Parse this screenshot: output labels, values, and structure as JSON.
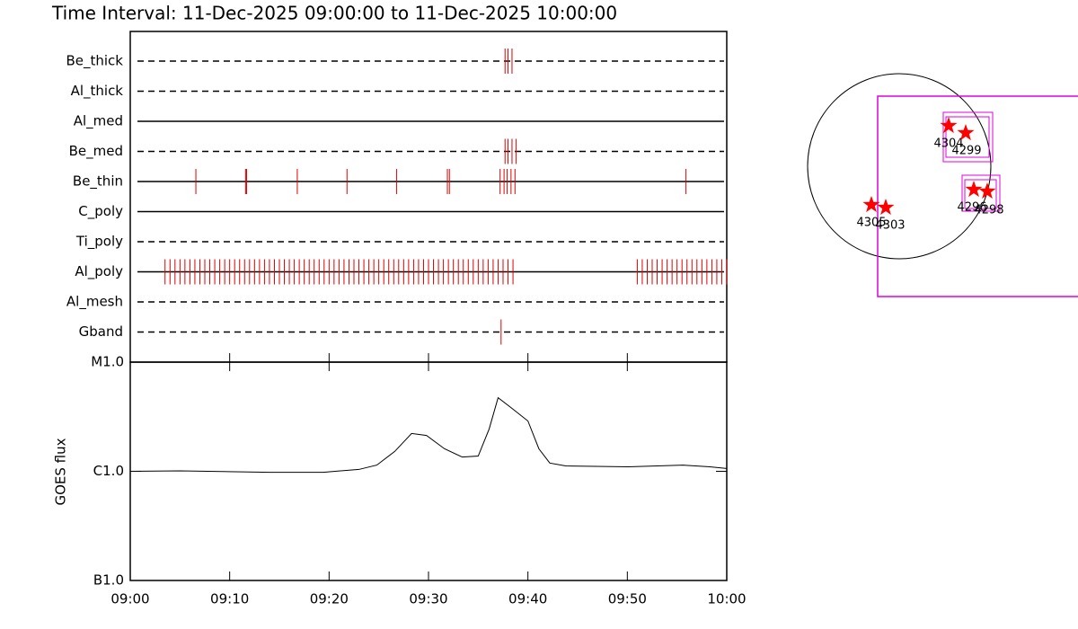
{
  "title": "Time Interval: 11-Dec-2025 09:00:00 to 11-Dec-2025 10:00:00",
  "chart_data": [
    {
      "type": "timeline",
      "color": "#e00000",
      "xlim": [
        0,
        60
      ],
      "rows": [
        {
          "label": "Be_thick",
          "style": "dashed",
          "events": [
            37.7,
            38.0,
            38.4
          ]
        },
        {
          "label": "Al_thick",
          "style": "dashed",
          "events": []
        },
        {
          "label": "Al_med",
          "style": "solid",
          "events": []
        },
        {
          "label": "Be_med",
          "style": "dashed",
          "events": [
            37.7,
            38.0,
            38.4,
            38.8
          ]
        },
        {
          "label": "Be_thin",
          "style": "solid",
          "events": [
            6.6,
            11.6,
            11.7,
            16.8,
            21.8,
            26.8,
            31.9,
            32.1,
            37.2,
            37.6,
            37.9,
            38.3,
            38.7,
            55.9
          ]
        },
        {
          "label": "C_poly",
          "style": "solid",
          "events": []
        },
        {
          "label": "Ti_poly",
          "style": "dashed",
          "events": []
        },
        {
          "label": "Al_poly",
          "style": "solid",
          "events": [
            3.5,
            4.0,
            4.5,
            5.0,
            5.5,
            6.0,
            6.5,
            7.0,
            7.5,
            8.0,
            8.5,
            9.0,
            9.5,
            10.0,
            10.5,
            11.0,
            11.5,
            12.0,
            12.5,
            13.0,
            13.5,
            14.0,
            14.5,
            15.0,
            15.5,
            16.0,
            16.5,
            17.0,
            17.5,
            18.0,
            18.5,
            19.0,
            19.5,
            20.0,
            20.5,
            21.0,
            21.5,
            22.0,
            22.5,
            23.0,
            23.5,
            24.0,
            24.5,
            25.0,
            25.5,
            26.0,
            26.5,
            27.0,
            27.5,
            28.0,
            28.5,
            29.0,
            29.5,
            30.0,
            30.5,
            31.0,
            31.5,
            32.0,
            32.5,
            33.0,
            33.5,
            34.0,
            34.5,
            35.0,
            35.5,
            36.0,
            36.5,
            37.0,
            37.5,
            38.0,
            38.5,
            51.0,
            51.5,
            52.0,
            52.5,
            53.0,
            53.5,
            54.0,
            54.5,
            55.0,
            55.5,
            56.0,
            56.5,
            57.0,
            57.5,
            58.0,
            58.5,
            59.0,
            59.5,
            60.0
          ]
        },
        {
          "label": "Al_mesh",
          "style": "dashed",
          "events": []
        },
        {
          "label": "Gband",
          "style": "dashed",
          "events": [
            37.3
          ]
        }
      ]
    },
    {
      "type": "line",
      "y_label": "GOES flux",
      "color": "#000000",
      "log_y": true,
      "x": [
        0,
        5.0,
        14.0,
        19.4,
        23.0,
        24.8,
        26.6,
        28.3,
        29.8,
        31.6,
        33.4,
        35.0,
        36.1,
        37.0,
        38.4,
        40.0,
        41.1,
        42.2,
        43.8,
        50.1,
        55.6,
        58.3,
        60.0
      ],
      "values": [
        1e-06,
        1.01e-06,
        9.8e-07,
        9.8e-07,
        1.04e-06,
        1.14e-06,
        1.52e-06,
        2.22e-06,
        2.13e-06,
        1.61e-06,
        1.35e-06,
        1.38e-06,
        2.44e-06,
        4.72e-06,
        3.77e-06,
        2.89e-06,
        1.61e-06,
        1.19e-06,
        1.12e-06,
        1.1e-06,
        1.14e-06,
        1.1e-06,
        1.06e-06
      ],
      "xlim": [
        0,
        60
      ],
      "xticks": [
        {
          "value": 0,
          "label": "09:00"
        },
        {
          "value": 10,
          "label": "09:10"
        },
        {
          "value": 20,
          "label": "09:20"
        },
        {
          "value": 30,
          "label": "09:30"
        },
        {
          "value": 40,
          "label": "09:40"
        },
        {
          "value": 50,
          "label": "09:50"
        },
        {
          "value": 60,
          "label": "10:00"
        }
      ],
      "ylim": [
        1e-07,
        1e-05
      ],
      "yticks": [
        {
          "value": 1e-07,
          "label": "B1.0"
        },
        {
          "value": 1e-06,
          "label": "C1.0"
        },
        {
          "value": 1e-05,
          "label": "M1.0"
        }
      ]
    }
  ],
  "map": {
    "markers": [
      {
        "label": "4304"
      },
      {
        "label": "4299"
      },
      {
        "label": "4296"
      },
      {
        "label": "4298"
      },
      {
        "label": "4305"
      },
      {
        "label": "4303"
      }
    ]
  }
}
